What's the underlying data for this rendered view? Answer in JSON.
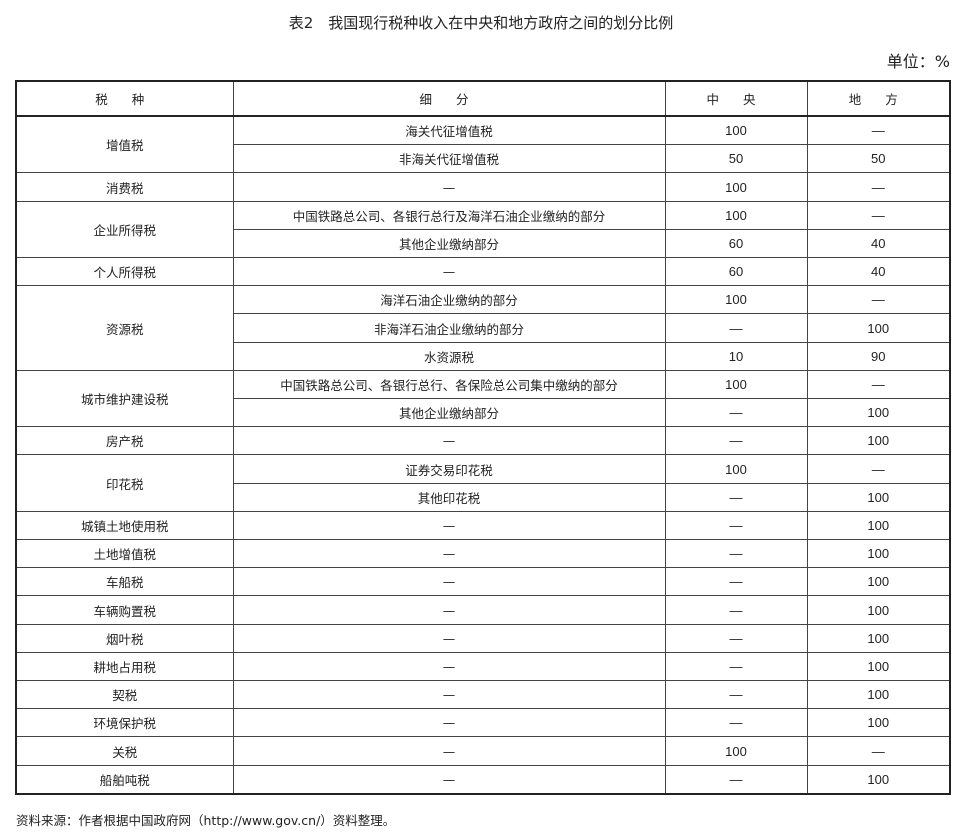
{
  "title": "表2　我国现行税种收入在中央和地方政府之间的划分比例",
  "unit": "单位：%",
  "headers": [
    "税 种",
    "细 分",
    "中 央",
    "地 方"
  ],
  "groups": [
    {
      "tax": "增值税",
      "rows": [
        [
          "海关代征增值税",
          "100",
          "—"
        ],
        [
          "非海关代征增值税",
          "50",
          "50"
        ]
      ]
    },
    {
      "tax": "消费税",
      "rows": [
        [
          "—",
          "100",
          "—"
        ]
      ]
    },
    {
      "tax": "企业所得税",
      "rows": [
        [
          "中国铁路总公司、各银行总行及海洋石油企业缴纳的部分",
          "100",
          "—"
        ],
        [
          "其他企业缴纳部分",
          "60",
          "40"
        ]
      ]
    },
    {
      "tax": "个人所得税",
      "rows": [
        [
          "—",
          "60",
          "40"
        ]
      ]
    },
    {
      "tax": "资源税",
      "rows": [
        [
          "海洋石油企业缴纳的部分",
          "100",
          "—"
        ],
        [
          "非海洋石油企业缴纳的部分",
          "—",
          "100"
        ],
        [
          "水资源税",
          "10",
          "90"
        ]
      ]
    },
    {
      "tax": "城市维护建设税",
      "rows": [
        [
          "中国铁路总公司、各银行总行、各保险总公司集中缴纳的部分",
          "100",
          "—"
        ],
        [
          "其他企业缴纳部分",
          "—",
          "100"
        ]
      ]
    },
    {
      "tax": "房产税",
      "rows": [
        [
          "—",
          "—",
          "100"
        ]
      ]
    },
    {
      "tax": "印花税",
      "rows": [
        [
          "证券交易印花税",
          "100",
          "—"
        ],
        [
          "其他印花税",
          "—",
          "100"
        ]
      ]
    },
    {
      "tax": "城镇土地使用税",
      "rows": [
        [
          "—",
          "—",
          "100"
        ]
      ]
    },
    {
      "tax": "土地增值税",
      "rows": [
        [
          "—",
          "—",
          "100"
        ]
      ]
    },
    {
      "tax": "车船税",
      "rows": [
        [
          "—",
          "—",
          "100"
        ]
      ]
    },
    {
      "tax": "车辆购置税",
      "rows": [
        [
          "—",
          "—",
          "100"
        ]
      ]
    },
    {
      "tax": "烟叶税",
      "rows": [
        [
          "—",
          "—",
          "100"
        ]
      ]
    },
    {
      "tax": "耕地占用税",
      "rows": [
        [
          "—",
          "—",
          "100"
        ]
      ]
    },
    {
      "tax": "契税",
      "rows": [
        [
          "—",
          "—",
          "100"
        ]
      ]
    },
    {
      "tax": "环境保护税",
      "rows": [
        [
          "—",
          "—",
          "100"
        ]
      ]
    },
    {
      "tax": "关税",
      "rows": [
        [
          "—",
          "100",
          "—"
        ]
      ]
    },
    {
      "tax": "船舶吨税",
      "rows": [
        [
          "—",
          "—",
          "100"
        ]
      ]
    }
  ],
  "source_note": "资料来源：作者根据中国政府网（http://www.gov.cn/）资料整理。"
}
